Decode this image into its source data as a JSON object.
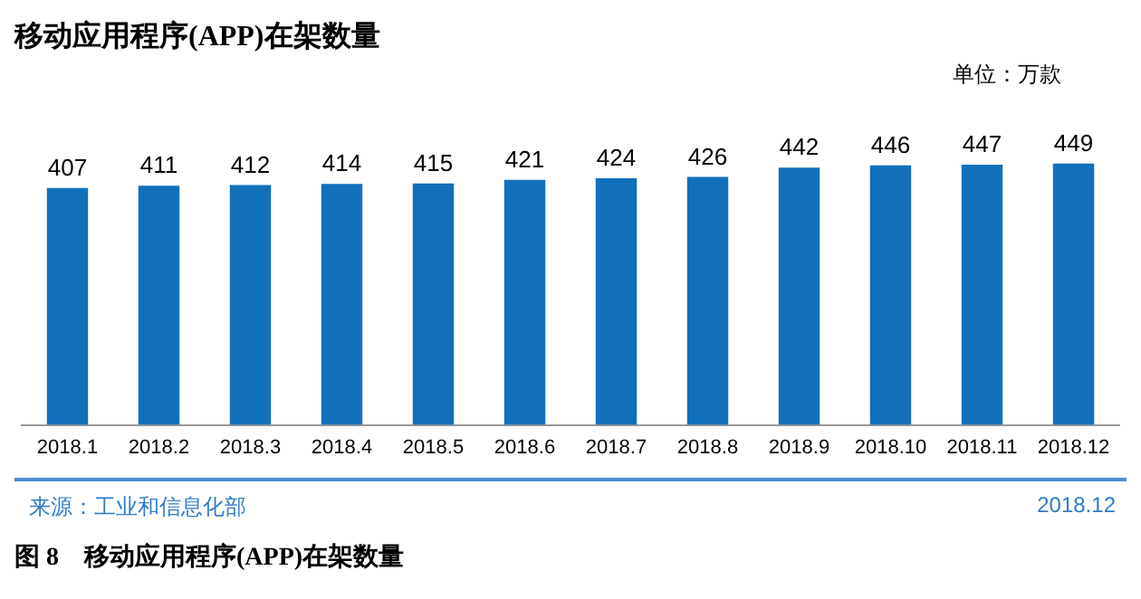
{
  "chart_data": {
    "type": "bar",
    "title": "移动应用程序(APP)在架数量",
    "categories": [
      "2018.1",
      "2018.2",
      "2018.3",
      "2018.4",
      "2018.5",
      "2018.6",
      "2018.7",
      "2018.8",
      "2018.9",
      "2018.10",
      "2018.11",
      "2018.12"
    ],
    "values": [
      407,
      411,
      412,
      414,
      415,
      421,
      424,
      426,
      442,
      446,
      447,
      449
    ],
    "color": "#1270bb",
    "data_labels": true,
    "grid": false,
    "legend": false,
    "annotations": [
      "单位：万款",
      "来源：工业和信息化部",
      "2018.12",
      "图 8　移动应用程序(APP)在架数量"
    ]
  }
}
